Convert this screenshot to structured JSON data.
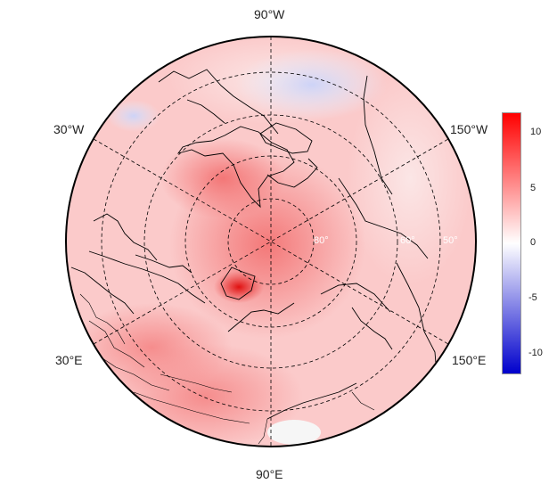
{
  "map": {
    "projection": "north polar stereographic",
    "longitude_labels": {
      "top": "90°W",
      "upper_left": "30°W",
      "upper_right": "150°W",
      "lower_left": "30°E",
      "lower_right": "150°E",
      "bottom": "90°E"
    },
    "latitude_labels": [
      "80°",
      "60°",
      "50°"
    ],
    "coastlines": true,
    "country_borders": true,
    "graticule": "dashed"
  },
  "colorbar": {
    "ticks": [
      "10",
      "5",
      "0",
      "-5",
      "-10"
    ],
    "range": [
      -12,
      12
    ],
    "colors": {
      "max": "#ff0000",
      "mid": "#ffffff",
      "min": "#0000cc"
    }
  }
}
